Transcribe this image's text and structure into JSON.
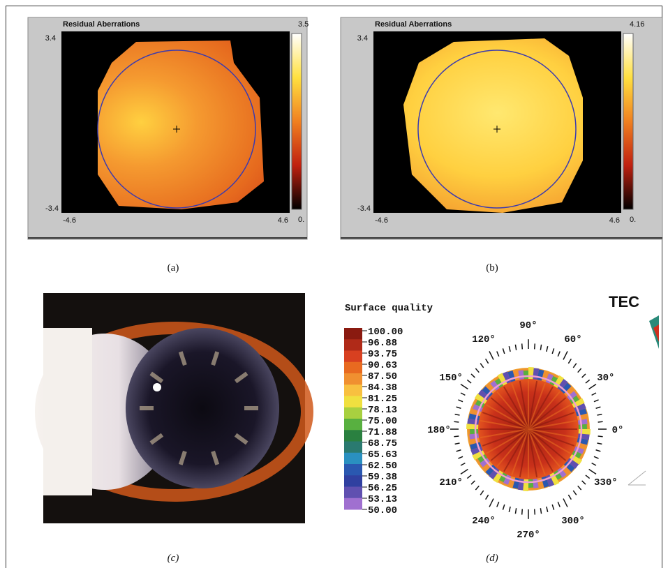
{
  "panels": [
    {
      "title": "Residual Aberrations",
      "scale_max": "3.5",
      "scale_min": "0.",
      "y_top": "3.4",
      "y_bottom": "-3.4",
      "x_left": "-4.6",
      "x_right": "4.6",
      "caption": "(a)"
    },
    {
      "title": "Residual Aberrations",
      "scale_max": "4.16",
      "scale_min": "0.",
      "y_top": "3.4",
      "y_bottom": "-3.4",
      "x_left": "-4.6",
      "x_right": "4.6",
      "caption": "(b)"
    },
    {
      "caption": "(c)"
    },
    {
      "title": "Surface quality",
      "corner_text": "TEC",
      "scale_labels": [
        "100.00",
        "96.88",
        "93.75",
        "90.63",
        "87.50",
        "84.38",
        "81.25",
        "78.13",
        "75.00",
        "71.88",
        "68.75",
        "65.63",
        "62.50",
        "59.38",
        "56.25",
        "53.13",
        "50.00"
      ],
      "angle_labels": [
        "0°",
        "30°",
        "60°",
        "90°",
        "120°",
        "150°",
        "180°",
        "210°",
        "240°",
        "270°",
        "300°",
        "330°"
      ],
      "caption": "(d)"
    }
  ]
}
